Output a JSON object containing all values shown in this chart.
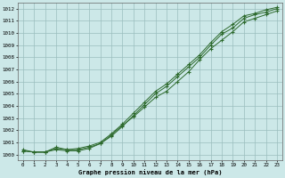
{
  "x": [
    0,
    1,
    2,
    3,
    4,
    5,
    6,
    7,
    8,
    9,
    10,
    11,
    12,
    13,
    14,
    15,
    16,
    17,
    18,
    19,
    20,
    21,
    22,
    23
  ],
  "line1": [
    1000.3,
    1000.2,
    1000.2,
    1000.5,
    1000.4,
    1000.4,
    1000.6,
    1000.9,
    1001.5,
    1002.3,
    1003.2,
    1004.1,
    1005.0,
    1005.6,
    1006.4,
    1007.2,
    1008.0,
    1009.0,
    1009.9,
    1010.4,
    1011.2,
    1011.5,
    1011.7,
    1012.0
  ],
  "line2": [
    1000.3,
    1000.2,
    1000.2,
    1000.6,
    1000.4,
    1000.5,
    1000.7,
    1001.0,
    1001.7,
    1002.5,
    1003.4,
    1004.3,
    1005.2,
    1005.8,
    1006.6,
    1007.4,
    1008.2,
    1009.2,
    1010.1,
    1010.7,
    1011.4,
    1011.6,
    1011.9,
    1012.1
  ],
  "line3": [
    1000.4,
    1000.2,
    1000.2,
    1000.4,
    1000.3,
    1000.3,
    1000.5,
    1000.9,
    1001.6,
    1002.4,
    1003.1,
    1003.9,
    1004.7,
    1005.2,
    1006.0,
    1006.8,
    1007.8,
    1008.7,
    1009.4,
    1010.1,
    1010.9,
    1011.2,
    1011.5,
    1011.8
  ],
  "line_color": "#2d6a2d",
  "bg_color": "#cce8e8",
  "grid_color": "#9abebe",
  "xlabel": "Graphe pression niveau de la mer (hPa)",
  "ylim": [
    999.5,
    1012.5
  ],
  "xlim": [
    -0.5,
    23.5
  ],
  "yticks": [
    1000,
    1001,
    1002,
    1003,
    1004,
    1005,
    1006,
    1007,
    1008,
    1009,
    1010,
    1011,
    1012
  ],
  "xticks": [
    0,
    1,
    2,
    3,
    4,
    5,
    6,
    7,
    8,
    9,
    10,
    11,
    12,
    13,
    14,
    15,
    16,
    17,
    18,
    19,
    20,
    21,
    22,
    23
  ]
}
